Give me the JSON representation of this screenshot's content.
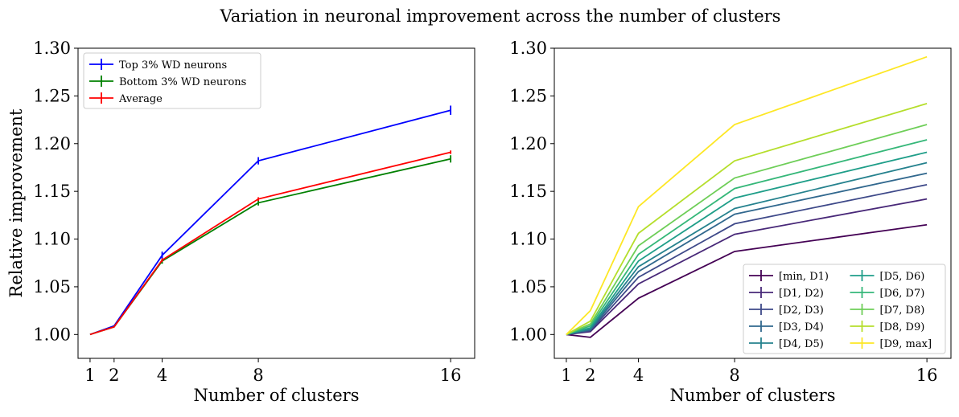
{
  "suptitle": "Variation in neuronal improvement across the number of clusters",
  "chart_data": [
    {
      "type": "line",
      "title": "",
      "xlabel": "Number of clusters",
      "ylabel": "Relative improvement",
      "x": [
        1,
        2,
        4,
        8,
        16
      ],
      "xticks": [
        "1",
        "2",
        "4",
        "8",
        "16"
      ],
      "yticks": [
        "1.00",
        "1.05",
        "1.10",
        "1.15",
        "1.20",
        "1.25",
        "1.30"
      ],
      "xlim": [
        0.5,
        17.0
      ],
      "ylim": [
        0.975,
        1.3
      ],
      "legend_position": "top-left",
      "legend_columns": 1,
      "series": [
        {
          "name": "Top 3% WD neurons",
          "color": "#0000ff",
          "values": [
            1.0,
            1.009,
            1.083,
            1.182,
            1.235
          ],
          "errors": [
            0,
            0,
            0.003,
            0.003,
            0.004
          ]
        },
        {
          "name": "Bottom 3% WD neurons",
          "color": "#008000",
          "values": [
            1.0,
            1.008,
            1.077,
            1.138,
            1.184
          ],
          "errors": [
            0,
            0,
            0.002,
            0.002,
            0.003
          ]
        },
        {
          "name": "Average",
          "color": "#ff0000",
          "values": [
            1.0,
            1.008,
            1.078,
            1.142,
            1.191
          ],
          "errors": [
            0,
            0,
            0.001,
            0.001,
            0.001
          ]
        }
      ]
    },
    {
      "type": "line",
      "title": "",
      "xlabel": "Number of clusters",
      "ylabel": "",
      "x": [
        1,
        2,
        4,
        8,
        16
      ],
      "xticks": [
        "1",
        "2",
        "4",
        "8",
        "16"
      ],
      "yticks": [
        "1.00",
        "1.05",
        "1.10",
        "1.15",
        "1.20",
        "1.25",
        "1.30"
      ],
      "xlim": [
        0.5,
        17.0
      ],
      "ylim": [
        0.975,
        1.3
      ],
      "legend_position": "bottom-right",
      "legend_columns": 2,
      "series": [
        {
          "name": "[min, D1)",
          "color": "#440154",
          "values": [
            1.0,
            0.997,
            1.038,
            1.087,
            1.115
          ]
        },
        {
          "name": "[D1, D2)",
          "color": "#482878",
          "values": [
            1.0,
            1.003,
            1.053,
            1.105,
            1.142
          ]
        },
        {
          "name": "[D2, D3)",
          "color": "#3e4989",
          "values": [
            1.0,
            1.004,
            1.06,
            1.116,
            1.157
          ]
        },
        {
          "name": "[D3, D4)",
          "color": "#31688e",
          "values": [
            1.0,
            1.005,
            1.066,
            1.126,
            1.169
          ]
        },
        {
          "name": "[D4, D5)",
          "color": "#26828e",
          "values": [
            1.0,
            1.006,
            1.071,
            1.132,
            1.18
          ]
        },
        {
          "name": "[D5, D6)",
          "color": "#1f9e89",
          "values": [
            1.0,
            1.007,
            1.077,
            1.143,
            1.191
          ]
        },
        {
          "name": "[D6, D7)",
          "color": "#35b779",
          "values": [
            1.0,
            1.009,
            1.084,
            1.153,
            1.204
          ]
        },
        {
          "name": "[D7, D8)",
          "color": "#6ece58",
          "values": [
            1.0,
            1.011,
            1.093,
            1.164,
            1.22
          ]
        },
        {
          "name": "[D8, D9)",
          "color": "#b5de2b",
          "values": [
            1.0,
            1.014,
            1.106,
            1.182,
            1.242
          ]
        },
        {
          "name": "[D9, max]",
          "color": "#fde725",
          "values": [
            1.0,
            1.025,
            1.134,
            1.22,
            1.291
          ]
        }
      ]
    }
  ]
}
